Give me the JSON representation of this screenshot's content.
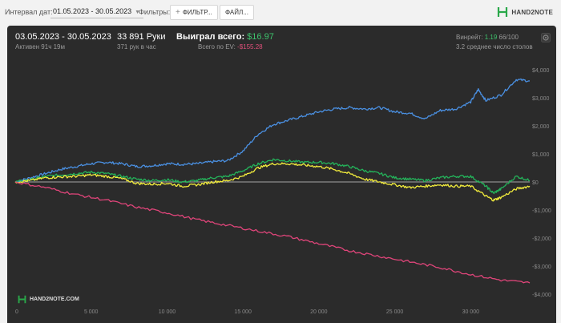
{
  "toolbar": {
    "date_label": "Интервал дат:",
    "date_range": "01.05.2023 - 30.05.2023",
    "filters_label": "Фильтры:",
    "filter_button": "ФИЛЬТР...",
    "file_button": "ФАЙЛ...",
    "logo_text": "HAND2NOTE"
  },
  "summary": {
    "period": "03.05.2023 - 30.05.2023",
    "active": "Активен 91ч 19м",
    "hands": "33 891 Руки",
    "rate": "371 рук в час",
    "won_label": "Выиграл всего: ",
    "won_value": "$16.97",
    "ev_label": "Всего по EV: ",
    "ev_value": "-$155.28",
    "vpip_label": "Винрейт: ",
    "vpip_value": "1.19",
    "vpip_suffix": " 66/100",
    "tables": "3.2 среднее число столов"
  },
  "watermark": "HAND2NOTE.COM",
  "colors": {
    "panel_bg": "#2b2b2b",
    "won": "#4a90e2",
    "showdown": "#24b35a",
    "ev": "#f2ec3c",
    "nonshowdown": "#e0457a",
    "positive": "#3ec46d",
    "negative": "#e0507a"
  },
  "chart_data": {
    "type": "line",
    "xlim": [
      0,
      33891
    ],
    "ylim": [
      -4000,
      4000
    ],
    "x_ticks": [
      0,
      5000,
      10000,
      15000,
      20000,
      25000,
      30000
    ],
    "x_tick_labels": [
      "0",
      "5 000",
      "10 000",
      "15 000",
      "20 000",
      "25 000",
      "30 000"
    ],
    "y_ticks": [
      4000,
      3000,
      2000,
      1000,
      0,
      -1000,
      -2000,
      -3000,
      -4000
    ],
    "y_tick_labels": [
      "$4,000",
      "$3,000",
      "$2,000",
      "$1,000",
      "$0",
      "-$1,000",
      "-$2,000",
      "-$3,000",
      "-$4,000"
    ],
    "grid": false,
    "series": [
      {
        "color": "#4a90e2",
        "x": [
          0,
          1000,
          2000,
          3000,
          4000,
          5000,
          6000,
          7000,
          8000,
          9000,
          10000,
          11000,
          12000,
          13000,
          14000,
          15000,
          16000,
          17000,
          18000,
          19000,
          20000,
          21000,
          22000,
          23000,
          24000,
          25000,
          26000,
          27000,
          28000,
          29000,
          30000,
          30500,
          31000,
          32000,
          33000,
          33891
        ],
        "y": [
          0,
          150,
          300,
          450,
          550,
          650,
          700,
          650,
          550,
          580,
          650,
          630,
          650,
          720,
          760,
          1100,
          1700,
          2050,
          2200,
          2350,
          2500,
          2600,
          2650,
          2600,
          2650,
          2500,
          2450,
          2250,
          2550,
          2600,
          2850,
          3300,
          2900,
          3100,
          3650,
          3600
        ]
      },
      {
        "color": "#24b35a",
        "x": [
          0,
          1000,
          2000,
          3000,
          4000,
          5000,
          6000,
          7000,
          8000,
          9000,
          10000,
          11000,
          12000,
          13000,
          14000,
          15000,
          16000,
          17000,
          18000,
          19000,
          20000,
          21000,
          22000,
          23000,
          24000,
          25000,
          26000,
          27000,
          28000,
          29000,
          30000,
          31000,
          31500,
          32000,
          33000,
          33891
        ],
        "y": [
          0,
          80,
          200,
          250,
          300,
          350,
          300,
          200,
          100,
          50,
          80,
          0,
          50,
          150,
          200,
          400,
          650,
          800,
          750,
          700,
          700,
          650,
          550,
          400,
          300,
          150,
          100,
          50,
          150,
          200,
          200,
          -150,
          -400,
          -250,
          200,
          50
        ]
      },
      {
        "color": "#f2ec3c",
        "x": [
          0,
          1000,
          2000,
          3000,
          4000,
          5000,
          6000,
          7000,
          8000,
          9000,
          10000,
          11000,
          12000,
          13000,
          14000,
          15000,
          16000,
          17000,
          18000,
          19000,
          20000,
          21000,
          22000,
          23000,
          24000,
          25000,
          26000,
          27000,
          28000,
          29000,
          30000,
          31000,
          31500,
          32000,
          33000,
          33891
        ],
        "y": [
          0,
          50,
          150,
          180,
          200,
          250,
          200,
          120,
          -50,
          -80,
          -50,
          -150,
          -100,
          0,
          50,
          200,
          500,
          650,
          650,
          600,
          550,
          450,
          300,
          100,
          0,
          -100,
          -200,
          -150,
          -100,
          -150,
          -150,
          -500,
          -650,
          -550,
          -250,
          -150
        ]
      },
      {
        "color": "#e0457a",
        "x": [
          0,
          2000,
          4000,
          6000,
          8000,
          10000,
          12000,
          14000,
          16000,
          18000,
          20000,
          22000,
          24000,
          26000,
          28000,
          30000,
          32000,
          33891
        ],
        "y": [
          0,
          -200,
          -450,
          -650,
          -900,
          -1100,
          -1350,
          -1550,
          -1750,
          -1950,
          -2200,
          -2450,
          -2650,
          -2850,
          -3050,
          -3300,
          -3500,
          -3600
        ]
      }
    ]
  }
}
